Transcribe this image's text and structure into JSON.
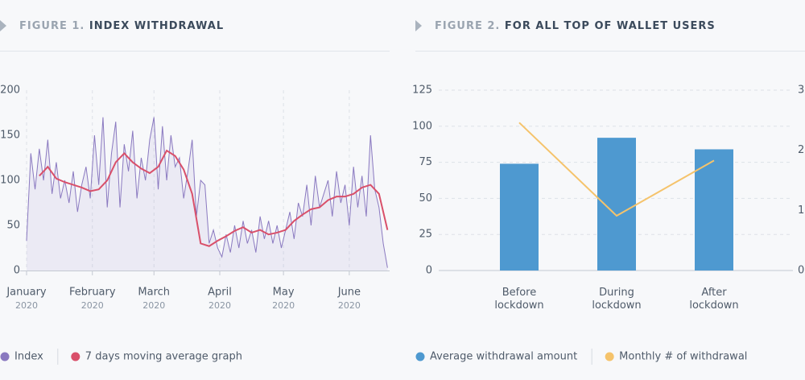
{
  "chart_data": [
    {
      "type": "line",
      "label": "FIGURE 1.",
      "title": "INDEX WITHDRAWAL",
      "xlim": [
        0,
        171
      ],
      "xticks": [
        {
          "value": 0,
          "label": "January",
          "sublabel": "2020"
        },
        {
          "value": 31,
          "label": "February",
          "sublabel": "2020"
        },
        {
          "value": 60,
          "label": "March",
          "sublabel": "2020"
        },
        {
          "value": 91,
          "label": "April",
          "sublabel": "2020"
        },
        {
          "value": 121,
          "label": "May",
          "sublabel": "2020"
        },
        {
          "value": 152,
          "label": "June",
          "sublabel": "2020"
        }
      ],
      "ylim": [
        0,
        200
      ],
      "yticks": [
        0,
        50,
        100,
        150,
        200
      ],
      "series": [
        {
          "name": "Index",
          "color": "#8a79c0",
          "area": true,
          "x": [
            0,
            2,
            4,
            6,
            8,
            10,
            12,
            14,
            16,
            18,
            20,
            22,
            24,
            26,
            28,
            30,
            32,
            34,
            36,
            38,
            40,
            42,
            44,
            46,
            48,
            50,
            52,
            54,
            56,
            58,
            60,
            62,
            64,
            66,
            68,
            70,
            72,
            74,
            76,
            78,
            80,
            82,
            84,
            86,
            88,
            90,
            92,
            94,
            96,
            98,
            100,
            102,
            104,
            106,
            108,
            110,
            112,
            114,
            116,
            118,
            120,
            122,
            124,
            126,
            128,
            130,
            132,
            134,
            136,
            138,
            140,
            142,
            144,
            146,
            148,
            150,
            152,
            154,
            156,
            158,
            160,
            162,
            164,
            166,
            168,
            170
          ],
          "values": [
            33,
            130,
            90,
            135,
            100,
            145,
            85,
            120,
            80,
            100,
            75,
            110,
            65,
            95,
            115,
            80,
            150,
            95,
            170,
            70,
            130,
            165,
            70,
            140,
            110,
            155,
            80,
            125,
            100,
            145,
            170,
            90,
            160,
            100,
            150,
            115,
            125,
            80,
            110,
            145,
            60,
            100,
            95,
            30,
            45,
            25,
            15,
            40,
            20,
            50,
            25,
            55,
            30,
            45,
            20,
            60,
            35,
            55,
            30,
            50,
            25,
            45,
            65,
            35,
            75,
            60,
            95,
            50,
            105,
            70,
            85,
            100,
            60,
            110,
            75,
            95,
            50,
            115,
            70,
            105,
            60,
            150,
            90,
            70,
            30,
            3
          ]
        },
        {
          "name": "7 days moving average graph",
          "color": "#d9506a",
          "x": [
            6,
            10,
            14,
            18,
            22,
            26,
            30,
            34,
            38,
            42,
            46,
            50,
            54,
            58,
            62,
            66,
            70,
            74,
            78,
            82,
            86,
            90,
            94,
            98,
            102,
            106,
            110,
            114,
            118,
            122,
            126,
            130,
            134,
            138,
            142,
            146,
            150,
            154,
            158,
            162,
            166,
            170
          ],
          "values": [
            105,
            115,
            102,
            98,
            95,
            92,
            88,
            90,
            100,
            120,
            130,
            120,
            113,
            108,
            115,
            133,
            127,
            112,
            85,
            30,
            27,
            33,
            38,
            44,
            48,
            42,
            45,
            40,
            42,
            45,
            55,
            62,
            68,
            70,
            78,
            82,
            82,
            85,
            92,
            95,
            85,
            45
          ]
        }
      ]
    },
    {
      "type": "combo",
      "label": "FIGURE 2.",
      "title": "FOR ALL TOP OF WALLET USERS",
      "categories": [
        "Before lockdown",
        "During lockdown",
        "After lockdown"
      ],
      "ylim": [
        0,
        125
      ],
      "yticks": [
        0,
        25,
        50,
        75,
        100,
        125
      ],
      "y2lim": [
        0,
        3
      ],
      "y2ticks": [
        0,
        1,
        2,
        3
      ],
      "grid": true,
      "series": [
        {
          "name": "Average withdrawal amount",
          "type": "bar",
          "color": "#4e99d0",
          "values": [
            74,
            92,
            84
          ]
        },
        {
          "name": "Monthly # of withdrawal",
          "type": "line",
          "axis": "y2",
          "color": "#f5c36b",
          "values": [
            2.46,
            0.91,
            1.83
          ]
        }
      ]
    }
  ]
}
